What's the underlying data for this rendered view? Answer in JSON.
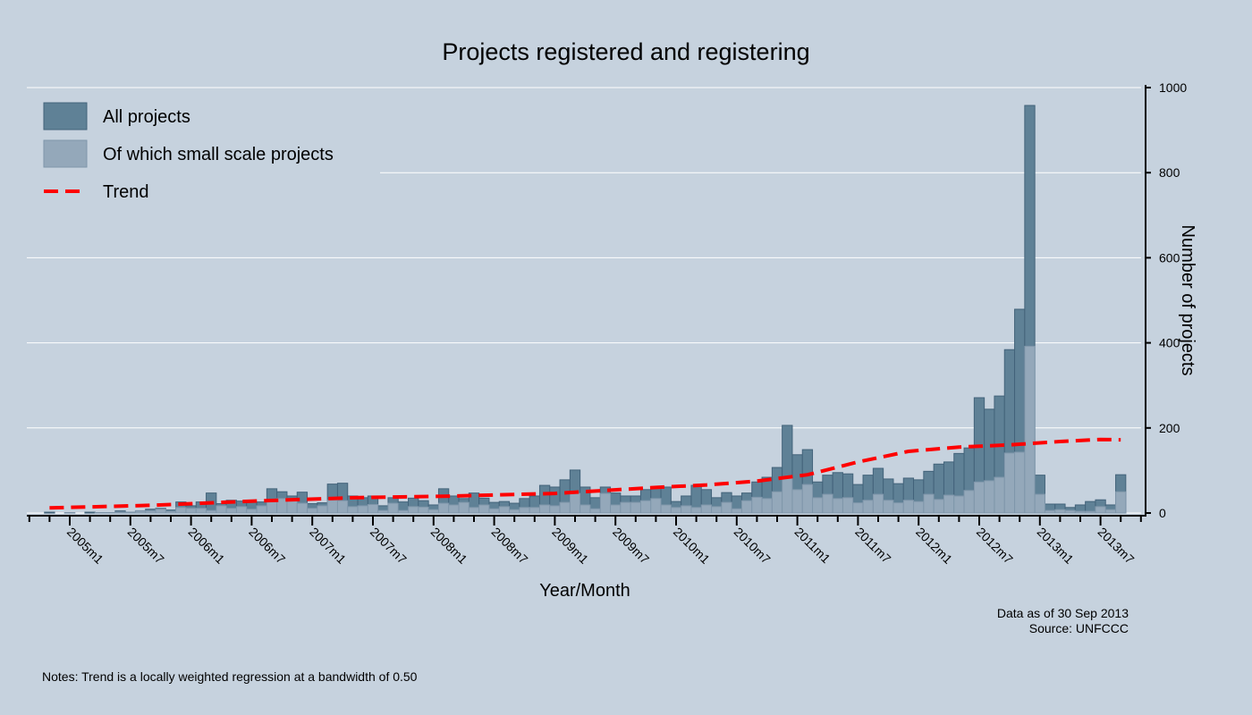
{
  "chart_data": {
    "type": "bar",
    "title": "Projects registered and registering",
    "xlabel": "Year/Month",
    "ylabel": "Number of projects",
    "ylim": [
      0,
      1000
    ],
    "yticks": [
      0,
      200,
      400,
      600,
      800,
      1000
    ],
    "grid": true,
    "legend_position": "top-left",
    "first_month": "2004m11",
    "last_month": "2013m9",
    "xtick_labels": [
      "2005m1",
      "2005m7",
      "2006m1",
      "2006m7",
      "2007m1",
      "2007m7",
      "2008m1",
      "2008m7",
      "2009m1",
      "2009m7",
      "2010m1",
      "2010m7",
      "2011m1",
      "2011m7",
      "2012m1",
      "2012m7",
      "2013m1",
      "2013m7"
    ],
    "series": [
      {
        "name": "All projects",
        "type": "bar",
        "color": "#5f8196",
        "values": [
          2,
          0,
          1,
          0,
          2,
          1,
          1,
          5,
          2,
          5,
          9,
          11,
          7,
          26,
          17,
          26,
          47,
          22,
          30,
          28,
          26,
          26,
          57,
          50,
          40,
          49,
          22,
          24,
          68,
          70,
          40,
          36,
          40,
          17,
          36,
          26,
          35,
          29,
          19,
          57,
          40,
          34,
          47,
          35,
          25,
          27,
          23,
          34,
          40,
          65,
          61,
          78,
          101,
          61,
          36,
          61,
          47,
          40,
          40,
          55,
          59,
          61,
          27,
          40,
          65,
          55,
          36,
          48,
          40,
          47,
          73,
          84,
          107,
          206,
          137,
          149,
          73,
          89,
          95,
          92,
          67,
          89,
          105,
          80,
          69,
          82,
          78,
          98,
          115,
          120,
          140,
          153,
          271,
          244,
          275,
          384,
          479,
          958,
          89,
          21,
          21,
          13,
          19,
          27,
          31,
          19,
          90
        ]
      },
      {
        "name": "Of which small scale projects",
        "type": "bar",
        "color": "#94a8ba",
        "values": [
          0,
          0,
          1,
          0,
          0,
          1,
          1,
          2,
          2,
          5,
          5,
          9,
          4,
          13,
          11,
          11,
          6,
          17,
          11,
          15,
          9,
          17,
          27,
          34,
          34,
          23,
          11,
          17,
          30,
          29,
          15,
          17,
          20,
          6,
          23,
          6,
          15,
          14,
          8,
          23,
          19,
          25,
          13,
          19,
          10,
          15,
          8,
          13,
          13,
          19,
          17,
          25,
          46,
          19,
          10,
          46,
          19,
          25,
          25,
          29,
          34,
          19,
          13,
          17,
          13,
          19,
          15,
          25,
          10,
          29,
          37,
          34,
          50,
          84,
          55,
          67,
          36,
          44,
          34,
          36,
          24,
          30,
          44,
          30,
          24,
          30,
          27,
          44,
          32,
          42,
          40,
          53,
          73,
          76,
          84,
          141,
          143,
          392,
          44,
          6,
          8,
          6,
          4,
          4,
          15,
          8,
          50
        ]
      },
      {
        "name": "Trend",
        "type": "line",
        "style": "dashed",
        "color": "#ff0000",
        "x_index": [
          0,
          10,
          20,
          30,
          40,
          50,
          60,
          65,
          70,
          75,
          80,
          85,
          90,
          95,
          100,
          104,
          106
        ],
        "values": [
          12,
          18,
          28,
          36,
          40,
          46,
          60,
          66,
          75,
          90,
          120,
          145,
          155,
          160,
          168,
          173,
          172
        ]
      }
    ]
  },
  "notes": "Notes: Trend is a locally weighted regression at a bandwidth of 0.50",
  "data_as_of": "Data as of 30 Sep 2013",
  "source": "Source: UNFCCC"
}
